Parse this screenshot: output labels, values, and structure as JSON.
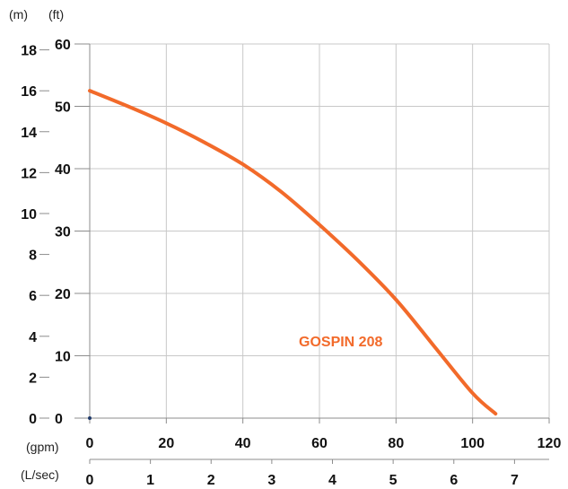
{
  "chart_data": {
    "type": "line",
    "title": "",
    "colors": {
      "curve": "#f26a2a",
      "grid": "#c8c8c8",
      "axis": "#8c8c8c",
      "text": "#111111"
    },
    "axes": {
      "x_primary": {
        "unit": "(gpm)",
        "range": [
          0,
          120
        ],
        "ticks": [
          "0",
          "20",
          "40",
          "60",
          "80",
          "100",
          "120"
        ]
      },
      "x_secondary": {
        "unit": "(L/sec)",
        "ticks": [
          "0",
          "1",
          "2",
          "3",
          "4",
          "5",
          "6",
          "7"
        ]
      },
      "y_left_meters": {
        "unit": "(m)",
        "ticks": [
          "0",
          "2",
          "4",
          "6",
          "8",
          "10",
          "12",
          "14",
          "16",
          "18"
        ]
      },
      "y_right_feet": {
        "unit": "(ft)",
        "range": [
          0,
          60
        ],
        "ticks": [
          "0",
          "10",
          "20",
          "30",
          "40",
          "50",
          "60"
        ]
      }
    },
    "grid": true,
    "series": [
      {
        "name": "GOSPIN 208",
        "x": [
          0,
          10,
          20,
          30,
          40,
          50,
          60,
          70,
          80,
          90,
          100,
          106
        ],
        "y": [
          52.5,
          50.0,
          47.3,
          44.2,
          40.7,
          36.3,
          31.0,
          25.3,
          19.0,
          11.5,
          4.0,
          0.7
        ]
      }
    ]
  }
}
